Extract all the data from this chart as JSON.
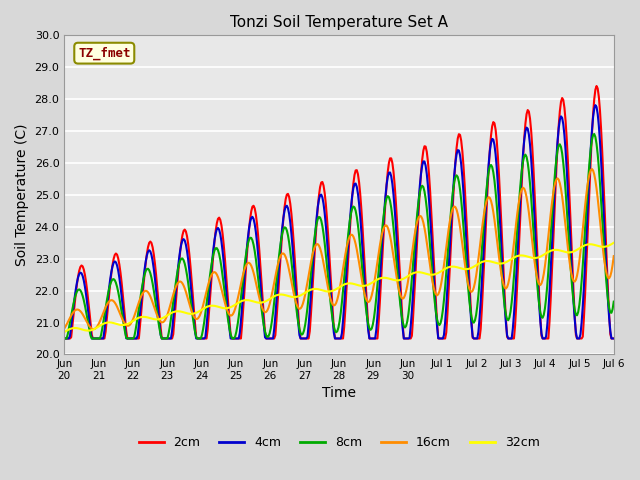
{
  "title": "Tonzi Soil Temperature Set A",
  "xlabel": "Time",
  "ylabel": "Soil Temperature (C)",
  "annotation": "TZ_fmet",
  "annotation_color": "#8B0000",
  "annotation_bg": "#FFFFE0",
  "annotation_border": "#8B8B00",
  "ylim": [
    20.0,
    30.0
  ],
  "yticks": [
    20.0,
    21.0,
    22.0,
    23.0,
    24.0,
    25.0,
    26.0,
    27.0,
    28.0,
    29.0,
    30.0
  ],
  "xtick_positions": [
    0,
    1,
    2,
    3,
    4,
    5,
    6,
    7,
    8,
    9,
    10,
    11,
    12,
    13,
    14,
    15,
    16
  ],
  "xtick_labels": [
    "Jun\n20",
    "Jun\n21",
    "Jun\n22",
    "Jun\n23",
    "Jun\n24",
    "Jun\n25",
    "Jun\n26",
    "Jun\n27",
    "Jun\n28",
    "Jun\n29",
    "Jun\n30",
    "Jul 1",
    "Jul 2",
    "Jul 3",
    "Jul 4",
    "Jul 5",
    "Jul 6"
  ],
  "line_colors": [
    "#FF0000",
    "#0000CD",
    "#00AA00",
    "#FF8C00",
    "#FFFF00"
  ],
  "line_labels": [
    "2cm",
    "4cm",
    "8cm",
    "16cm",
    "32cm"
  ],
  "line_widths": [
    1.5,
    1.5,
    1.5,
    1.5,
    1.5
  ],
  "bg_color": "#D8D8D8",
  "plot_bg_color": "#E8E8E8",
  "grid_color": "#FFFFFF",
  "n_points": 480
}
